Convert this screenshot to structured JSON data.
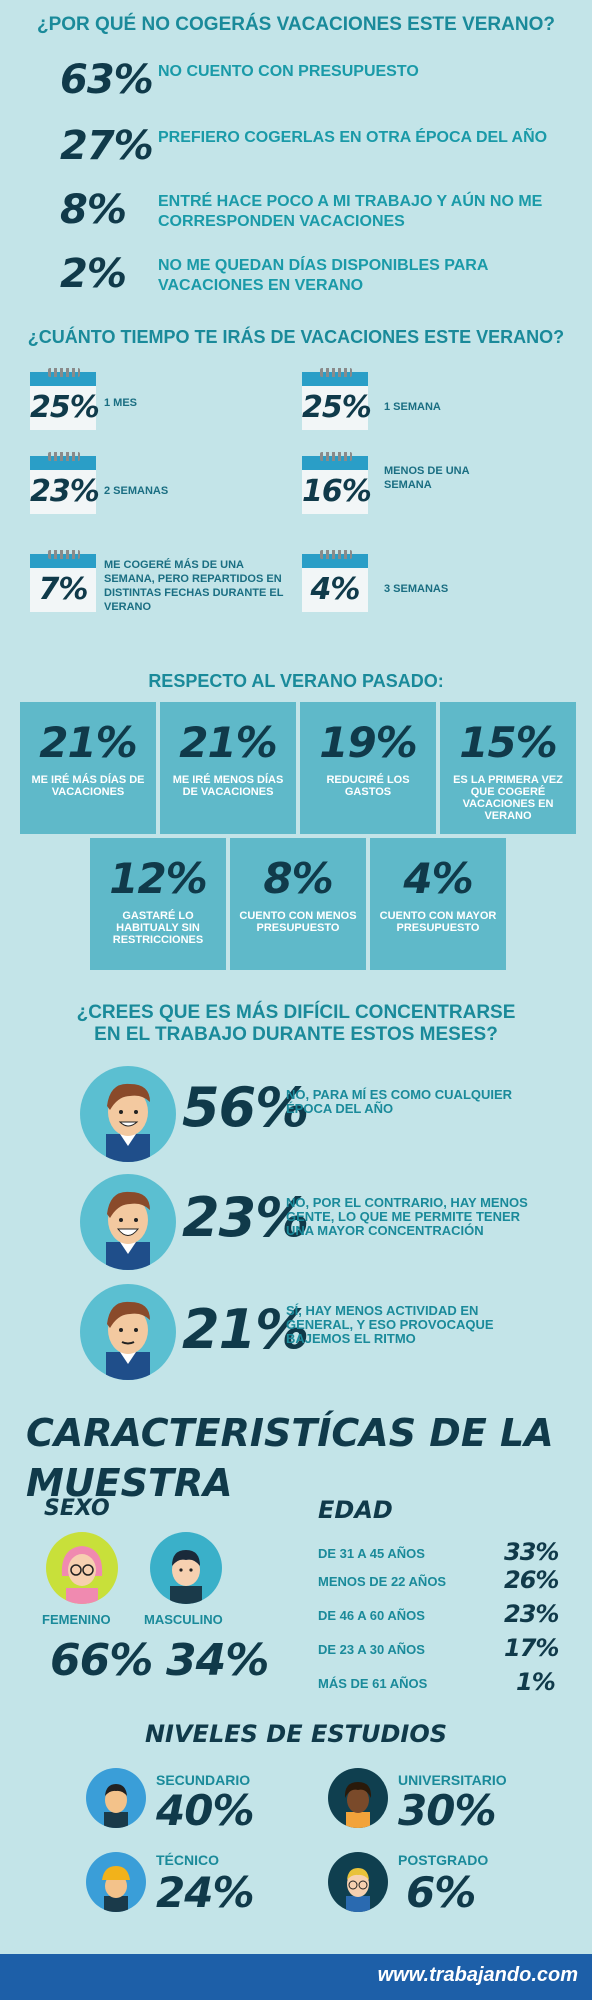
{
  "s1": {
    "title": "¿POR QUÉ NO COGERÁS VACACIONES ESTE VERANO?",
    "rows": [
      {
        "p": "63%",
        "t": "NO CUENTO CON PRESUPUESTO"
      },
      {
        "p": "27%",
        "t": "PREFIERO COGERLAS EN OTRA ÉPOCA DEL AÑO"
      },
      {
        "p": "8%",
        "t": "ENTRÉ HACE POCO A MI TRABAJO Y AÚN NO ME CORRESPONDEN VACACIONES"
      },
      {
        "p": "2%",
        "t": "NO ME QUEDAN DÍAS DISPONIBLES PARA VACACIONES EN VERANO"
      }
    ]
  },
  "s2": {
    "title": "¿CUÁNTO TIEMPO TE IRÁS DE VACACIONES ESTE VERANO?",
    "items": [
      {
        "p": "25%",
        "t": "1 MES"
      },
      {
        "p": "25%",
        "t": "1 SEMANA"
      },
      {
        "p": "23%",
        "t": "2 SEMANAS"
      },
      {
        "p": "16%",
        "t": "MENOS DE UNA SEMANA"
      },
      {
        "p": "7%",
        "t": "ME COGERÉ MÁS DE UNA SEMANA, PERO REPARTIDOS EN DISTINTAS FECHAS DURANTE EL VERANO"
      },
      {
        "p": "4%",
        "t": "3 SEMANAS"
      }
    ]
  },
  "s3": {
    "title": "RESPECTO AL VERANO PASADO:",
    "boxes": [
      {
        "p": "21%",
        "t": "ME IRÉ MÁS DÍAS DE VACACIONES"
      },
      {
        "p": "21%",
        "t": "ME IRÉ MENOS DÍAS DE VACACIONES"
      },
      {
        "p": "19%",
        "t": "REDUCIRÉ LOS GASTOS"
      },
      {
        "p": "15%",
        "t": "ES LA PRIMERA VEZ QUE COGERÉ VACACIONES EN VERANO"
      },
      {
        "p": "12%",
        "t": "GASTARÉ LO HABITUALY SIN RESTRICCIONES"
      },
      {
        "p": "8%",
        "t": "CUENTO CON MENOS PRESUPUESTO"
      },
      {
        "p": "4%",
        "t": "CUENTO CON MAYOR PRESUPUESTO"
      }
    ]
  },
  "s4": {
    "title1": "¿CREES QUE ES MÁS DIFÍCIL CONCENTRARSE",
    "title2": "EN EL TRABAJO DURANTE ESTOS MESES?",
    "rows": [
      {
        "p": "56%",
        "t": "NO, PARA MÍ ES COMO CUALQUIER ÉPOCA DEL AÑO"
      },
      {
        "p": "23%",
        "t": "NO, POR EL CONTRARIO, HAY MENOS GENTE, LO QUE ME PERMITE TENER UNA MAYOR CONCENTRACIÓN"
      },
      {
        "p": "21%",
        "t": "SÍ, HAY MENOS ACTIVIDAD EN GENERAL, Y ESO PROVOCAQUE BAJEMOS EL RITMO"
      }
    ]
  },
  "s5": {
    "title": "CARACTERISTÍCAS DE LA MUESTRA",
    "sexo": "SEXO",
    "fem": "FEMENINO",
    "masc": "MASCULINO",
    "femp": "66%",
    "mascp": "34%",
    "edad": "EDAD",
    "ages": [
      {
        "l": "DE 31 A 45 AÑOS",
        "p": "33%"
      },
      {
        "l": "MENOS DE 22 AÑOS",
        "p": "26%"
      },
      {
        "l": "DE 46 A 60 AÑOS",
        "p": "23%"
      },
      {
        "l": "DE 23 A 30 AÑOS",
        "p": "17%"
      },
      {
        "l": "MÁS DE 61 AÑOS",
        "p": "1%"
      }
    ],
    "est": "NIVELES DE ESTUDIOS",
    "levels": [
      {
        "l": "SECUNDARIO",
        "p": "40%"
      },
      {
        "l": "UNIVERSITARIO",
        "p": "30%"
      },
      {
        "l": "TÉCNICO",
        "p": "24%"
      },
      {
        "l": "POSTGRADO",
        "p": "6%"
      }
    ]
  },
  "footer": "www.trabajando.com"
}
